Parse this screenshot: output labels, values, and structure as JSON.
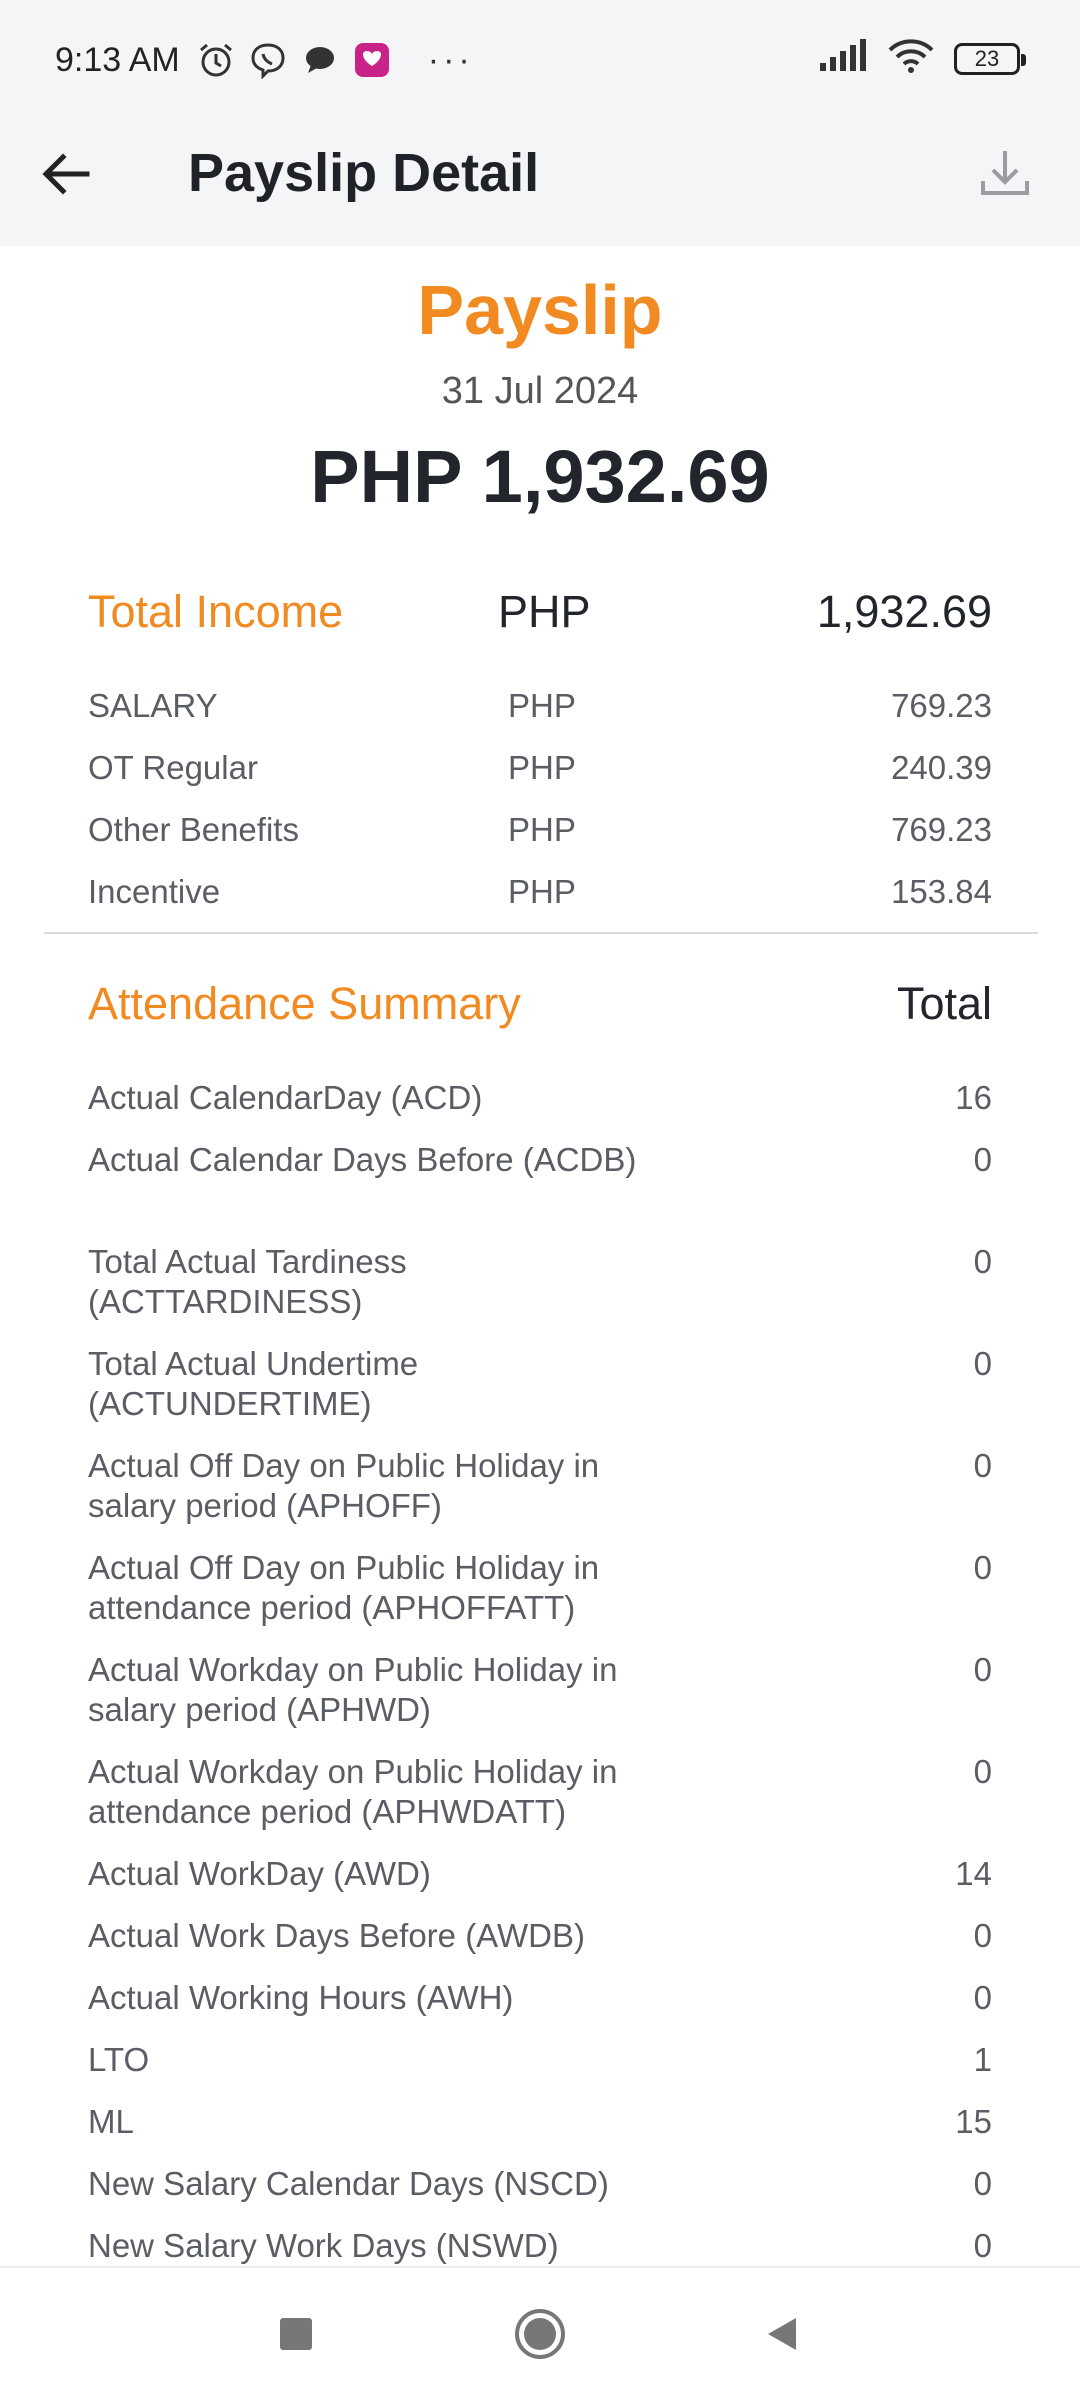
{
  "status_bar": {
    "time": "9:13 AM",
    "battery": "23",
    "left_icons": [
      "alarm-icon",
      "viber-icon",
      "chat-bubble-icon",
      "lazada-icon"
    ],
    "more": "···",
    "right_icons": [
      "signal-icon",
      "wifi-icon",
      "battery-icon"
    ]
  },
  "app_bar": {
    "title": "Payslip Detail",
    "back_icon": "arrow-left-icon",
    "download_icon": "download-icon"
  },
  "summary": {
    "title": "Payslip",
    "date": "31 Jul 2024",
    "amount": "PHP 1,932.69",
    "accent_color": "#f28a22"
  },
  "income": {
    "header": {
      "label": "Total Income",
      "currency": "PHP",
      "value": "1,932.69"
    },
    "items": [
      {
        "label": "SALARY",
        "currency": "PHP",
        "value": "769.23"
      },
      {
        "label": "OT Regular",
        "currency": "PHP",
        "value": "240.39"
      },
      {
        "label": "Other Benefits",
        "currency": "PHP",
        "value": "769.23"
      },
      {
        "label": "Incentive",
        "currency": "PHP",
        "value": "153.84"
      }
    ]
  },
  "attendance": {
    "header": {
      "label": "Attendance Summary",
      "total_label": "Total"
    },
    "items": [
      {
        "label": "Actual CalendarDay (ACD)",
        "value": "16"
      },
      {
        "label": "Actual Calendar Days Before (ACDB)",
        "value": "0"
      },
      {
        "label": "Total Actual Tardiness (ACTTARDINESS)",
        "value": "0"
      },
      {
        "label": "Total Actual Undertime (ACTUNDERTIME)",
        "value": "0"
      },
      {
        "label": "Actual Off Day on Public Holiday in salary period (APHOFF)",
        "value": "0"
      },
      {
        "label": "Actual Off Day on Public Holiday in attendance period (APHOFFATT)",
        "value": "0"
      },
      {
        "label": "Actual Workday on Public Holiday in salary period (APHWD)",
        "value": "0"
      },
      {
        "label": "Actual Workday on Public Holiday in attendance period (APHWDATT)",
        "value": "0"
      },
      {
        "label": "Actual WorkDay (AWD)",
        "value": "14"
      },
      {
        "label": "Actual Work Days Before (AWDB)",
        "value": "0"
      },
      {
        "label": "Actual Working Hours (AWH)",
        "value": "0"
      },
      {
        "label": "LTO",
        "value": "1"
      },
      {
        "label": "ML",
        "value": "15"
      },
      {
        "label": "New Salary Calendar Days (NSCD)",
        "value": "0"
      },
      {
        "label": "New Salary Work Days (NSWD)",
        "value": "0"
      }
    ]
  },
  "nav_bar": {
    "icons": [
      "recents-square-icon",
      "home-circle-icon",
      "back-triangle-icon"
    ]
  }
}
